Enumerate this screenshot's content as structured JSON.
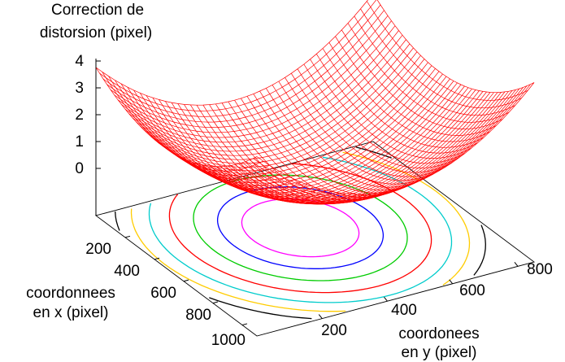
{
  "chart_data": {
    "type": "surface",
    "title_lines": [
      "Correction de",
      "distorsion (pixel)"
    ],
    "xlabel_lines": [
      "coordonnees",
      "en x (pixel)"
    ],
    "ylabel_lines": [
      "coordonees",
      "en y (pixel)"
    ],
    "x_ticks": [
      "200",
      "400",
      "600",
      "800",
      "1000"
    ],
    "y_ticks": [
      "200",
      "400",
      "600",
      "800"
    ],
    "z_ticks": [
      "0",
      "1",
      "2",
      "3",
      "4"
    ],
    "xlim": [
      0,
      1100
    ],
    "ylim": [
      0,
      850
    ],
    "zlim": [
      0,
      4
    ],
    "surface_color": "#ff0000",
    "surface_model": {
      "form": "z = a*((x-x0)/sx)^2 + b*((y-y0)/sy)^2",
      "x0": 450,
      "y0": 425,
      "sx": 550,
      "sy": 425,
      "a": 1.6,
      "b": 2.6
    },
    "contours": [
      {
        "level": 0.3,
        "color": "#ff00ff"
      },
      {
        "level": 0.6,
        "color": "#0000ff"
      },
      {
        "level": 1.0,
        "color": "#00cc00"
      },
      {
        "level": 1.5,
        "color": "#ff0000"
      },
      {
        "level": 2.0,
        "color": "#00cccc"
      },
      {
        "level": 2.5,
        "color": "#ffcc00"
      },
      {
        "level": 3.0,
        "color": "#000000"
      }
    ]
  }
}
